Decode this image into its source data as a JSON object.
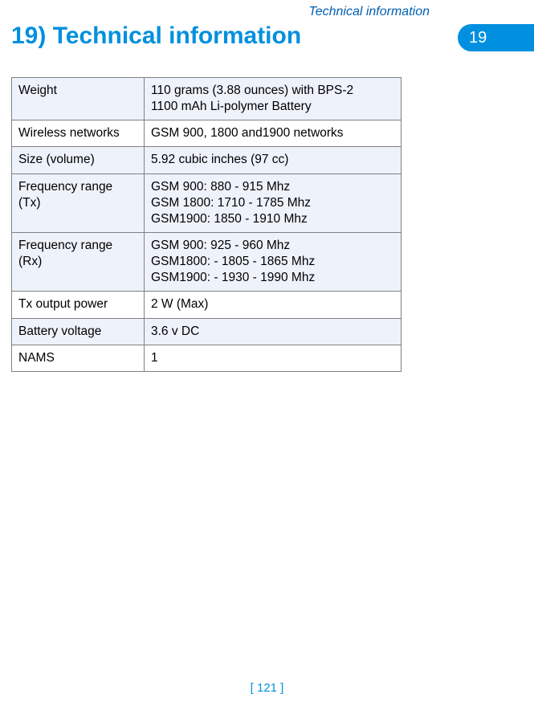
{
  "header": {
    "section_label": "Technical information",
    "chapter_number": "19"
  },
  "title": "19) Technical information",
  "table": {
    "rows": [
      {
        "label": "Weight",
        "value_lines": [
          "110 grams (3.88 ounces) with BPS-2",
          "1100 mAh Li-polymer Battery"
        ],
        "shaded": true
      },
      {
        "label": "Wireless networks",
        "value_lines": [
          "GSM 900, 1800 and1900 networks"
        ],
        "shaded": false
      },
      {
        "label": "Size (volume)",
        "value_lines": [
          "5.92 cubic inches (97 cc)"
        ],
        "shaded": true
      },
      {
        "label": "Frequency range (Tx)",
        "value_lines": [
          "GSM 900: 880 - 915 Mhz",
          "GSM 1800: 1710 - 1785 Mhz",
          "GSM1900: 1850 - 1910 Mhz"
        ],
        "shaded": true
      },
      {
        "label": "Frequency range (Rx)",
        "value_lines": [
          "GSM 900: 925 - 960 Mhz",
          "GSM1800: - 1805 - 1865 Mhz",
          "GSM1900: - 1930 - 1990 Mhz"
        ],
        "shaded": true
      },
      {
        "label": "Tx output power",
        "value_lines": [
          "2 W (Max)"
        ],
        "shaded": false
      },
      {
        "label": "Battery voltage",
        "value_lines": [
          "3.6 v DC"
        ],
        "shaded": true
      },
      {
        "label": "NAMS",
        "value_lines": [
          "1"
        ],
        "shaded": false
      }
    ]
  },
  "footer": {
    "page_number": "[ 121 ]"
  },
  "colors": {
    "accent_blue": "#0090df",
    "header_blue": "#005fb0",
    "shade_bg": "#eef2fb",
    "border": "#808080",
    "text": "#000000",
    "page_bg": "#ffffff"
  }
}
